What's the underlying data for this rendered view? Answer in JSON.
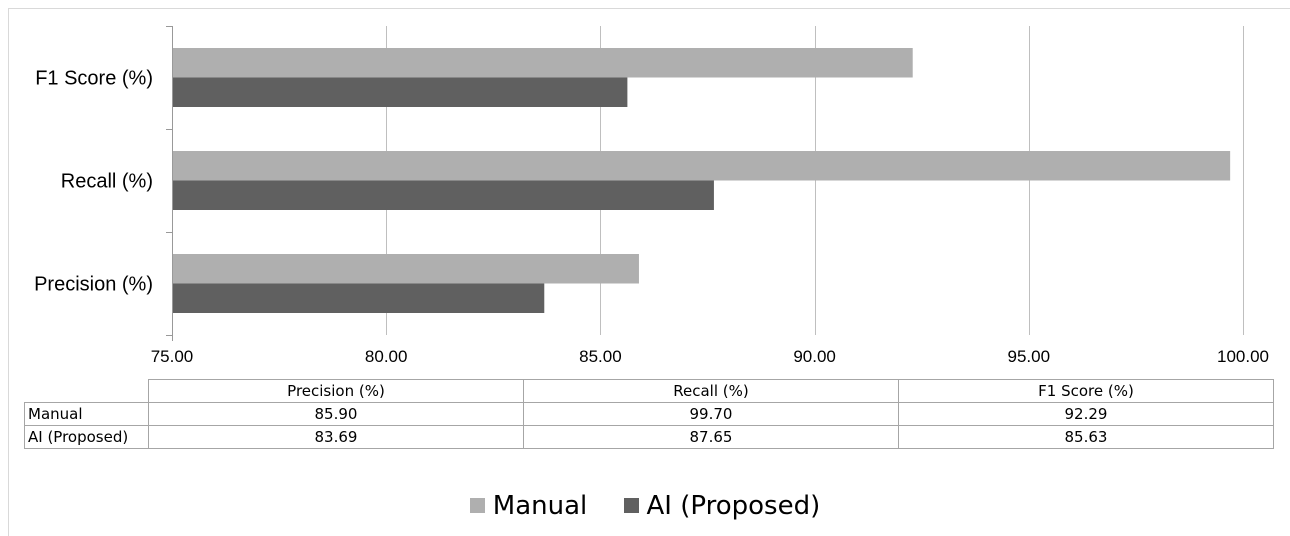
{
  "chart_data": {
    "type": "bar",
    "orientation": "horizontal",
    "categories": [
      "Precision (%)",
      "Recall (%)",
      "F1 Score (%)"
    ],
    "series": [
      {
        "name": "Manual",
        "values": [
          85.9,
          99.7,
          92.29
        ],
        "display": [
          "85.90",
          "99.70",
          "92.29"
        ],
        "color": "#afafaf"
      },
      {
        "name": "AI (Proposed)",
        "values": [
          83.69,
          87.65,
          85.63
        ],
        "display": [
          "83.69",
          "87.65",
          "85.63"
        ],
        "color": "#606060"
      }
    ],
    "xlim": [
      75,
      100
    ],
    "xticks": [
      "75.00",
      "80.00",
      "85.00",
      "90.00",
      "95.00",
      "100.00"
    ],
    "grid": true,
    "legend": "bottom",
    "data_table": true
  }
}
